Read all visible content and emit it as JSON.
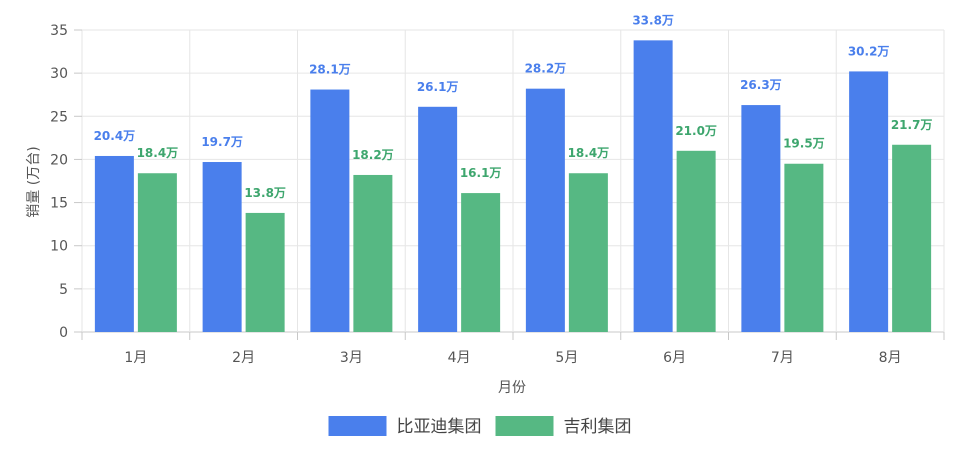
{
  "chart_data": {
    "type": "bar",
    "xlabel": "月份",
    "ylabel": "销量 (万台)",
    "ylim": [
      0,
      35
    ],
    "yticks": [
      0,
      5,
      10,
      15,
      20,
      25,
      30,
      35
    ],
    "grid": true,
    "legend_position": "bottom",
    "categories": [
      "1月",
      "2月",
      "3月",
      "4月",
      "5月",
      "6月",
      "7月",
      "8月"
    ],
    "series": [
      {
        "name": "比亚迪集团",
        "color": "#4a7fec",
        "label_color": "#4a7fec",
        "values": [
          20.4,
          19.7,
          28.1,
          26.1,
          28.2,
          33.8,
          26.3,
          30.2
        ],
        "labels": [
          "20.4万",
          "19.7万",
          "28.1万",
          "26.1万",
          "28.2万",
          "33.8万",
          "26.3万",
          "30.2万"
        ]
      },
      {
        "name": "吉利集团",
        "color": "#56b883",
        "label_color": "#3ea66e",
        "values": [
          18.4,
          13.8,
          18.2,
          16.1,
          18.4,
          21.0,
          19.5,
          21.7
        ],
        "labels": [
          "18.4万",
          "13.8万",
          "18.2万",
          "16.1万",
          "18.4万",
          "21.0万",
          "19.5万",
          "21.7万"
        ]
      }
    ]
  }
}
